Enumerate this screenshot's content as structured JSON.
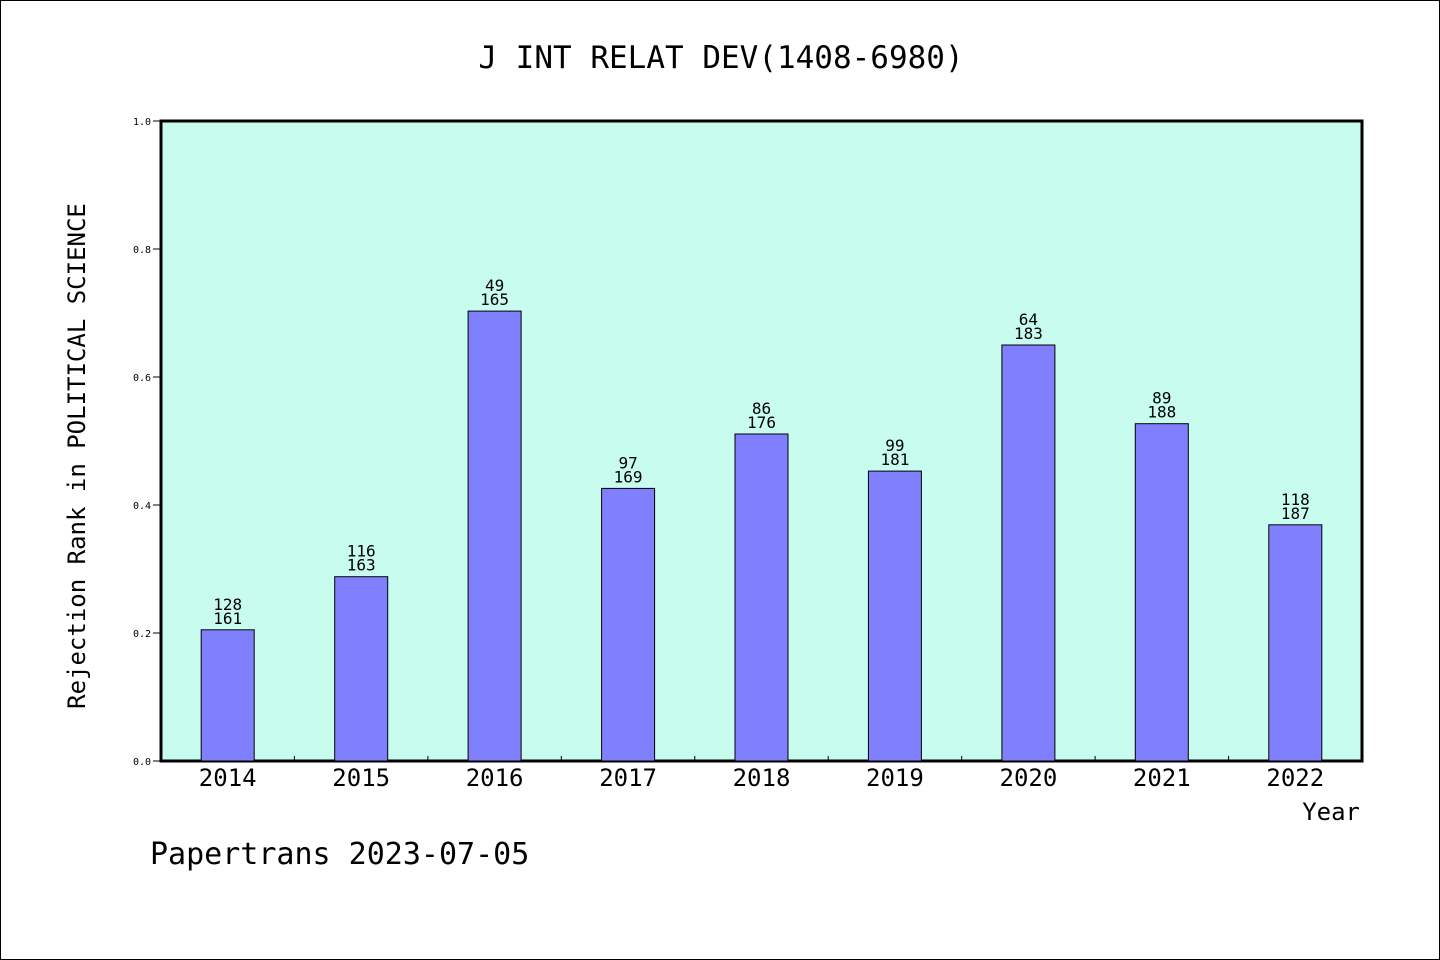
{
  "chart_data": {
    "type": "bar",
    "title": "J INT RELAT DEV(1408-6980)",
    "xlabel": "Year",
    "ylabel": "Rejection Rank in POLITICAL SCIENCE",
    "ylim": [
      0,
      1.0
    ],
    "yticks": [
      "0.0",
      "0.2",
      "0.4",
      "0.6",
      "0.8",
      "1.0"
    ],
    "categories": [
      "2014",
      "2015",
      "2016",
      "2017",
      "2018",
      "2019",
      "2020",
      "2021",
      "2022"
    ],
    "values": [
      0.205,
      0.288,
      0.703,
      0.426,
      0.511,
      0.453,
      0.65,
      0.527,
      0.369
    ],
    "labels_top": [
      "128",
      "116",
      "49",
      "97",
      "86",
      "99",
      "64",
      "89",
      "118"
    ],
    "labels_bottom": [
      "161",
      "163",
      "165",
      "169",
      "176",
      "181",
      "183",
      "188",
      "187"
    ],
    "grid": false,
    "colors": {
      "plot_background": "#c8fcee",
      "bar_fill": "#8080ff",
      "bar_stroke": "#000000"
    }
  },
  "footer": "Papertrans 2023-07-05"
}
